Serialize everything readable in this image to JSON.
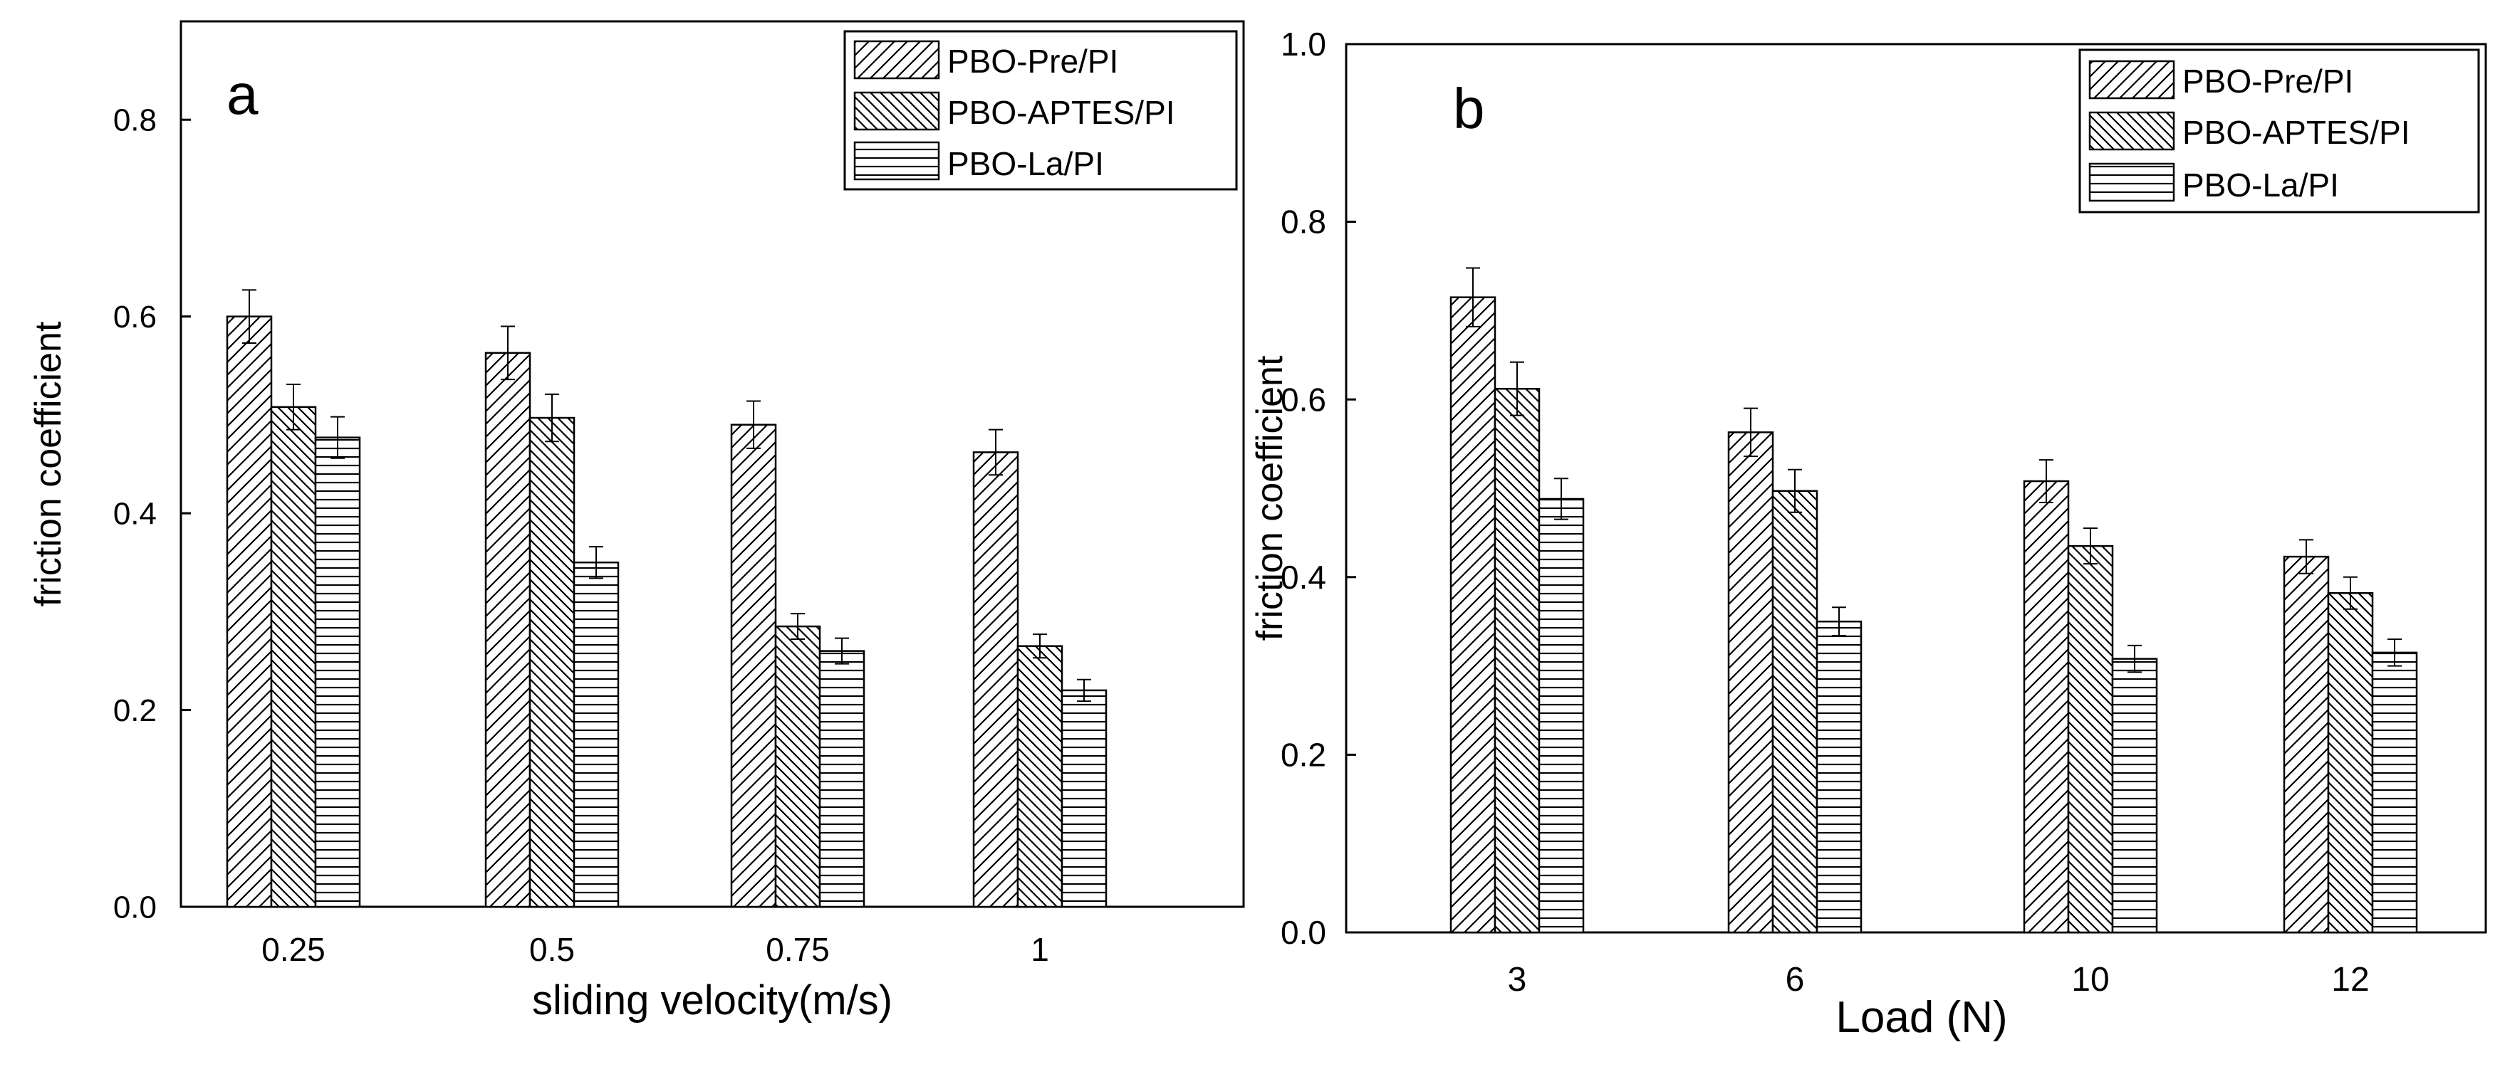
{
  "series_names": [
    "PBO-Pre/PI",
    "PBO-APTES/PI",
    "PBO-La/PI"
  ],
  "colors": {
    "stroke": "#000000",
    "background": "#ffffff"
  },
  "chart_data": [
    {
      "panel": "a",
      "type": "bar",
      "title": "",
      "xlabel": "sliding velocity(m/s)",
      "ylabel": "friction coefficient",
      "categories": [
        "0.25",
        "0.5",
        "0.75",
        "1"
      ],
      "ylim": [
        0,
        0.9
      ],
      "yticks": [
        "0.0",
        "0.2",
        "0.4",
        "0.6",
        "0.8"
      ],
      "ytick_values": [
        0,
        0.2,
        0.4,
        0.6,
        0.8
      ],
      "series": [
        {
          "name": "PBO-Pre/PI",
          "pattern": "diagonal-up",
          "values": [
            0.6,
            0.563,
            0.49,
            0.462
          ],
          "errors": [
            0.027,
            0.027,
            0.024,
            0.023
          ]
        },
        {
          "name": "PBO-APTES/PI",
          "pattern": "diagonal-down",
          "values": [
            0.508,
            0.497,
            0.285,
            0.265
          ],
          "errors": [
            0.023,
            0.024,
            0.013,
            0.012
          ]
        },
        {
          "name": "PBO-La/PI",
          "pattern": "horizontal",
          "values": [
            0.477,
            0.35,
            0.26,
            0.22
          ],
          "errors": [
            0.021,
            0.016,
            0.013,
            0.011
          ]
        }
      ],
      "legend_position": "top-right"
    },
    {
      "panel": "b",
      "type": "bar",
      "title": "",
      "xlabel": "Load (N)",
      "ylabel": "friction coefficient",
      "categories": [
        "3",
        "6",
        "10",
        "12"
      ],
      "ylim": [
        0,
        1.0
      ],
      "yticks": [
        "0.0",
        "0.2",
        "0.4",
        "0.6",
        "0.8",
        "1.0"
      ],
      "ytick_values": [
        0,
        0.2,
        0.4,
        0.6,
        0.8,
        1.0
      ],
      "series": [
        {
          "name": "PBO-Pre/PI",
          "pattern": "diagonal-up",
          "values": [
            0.715,
            0.563,
            0.508,
            0.423
          ],
          "errors": [
            0.033,
            0.027,
            0.024,
            0.019
          ]
        },
        {
          "name": "PBO-APTES/PI",
          "pattern": "diagonal-down",
          "values": [
            0.612,
            0.497,
            0.435,
            0.382
          ],
          "errors": [
            0.03,
            0.024,
            0.02,
            0.018
          ]
        },
        {
          "name": "PBO-La/PI",
          "pattern": "horizontal",
          "values": [
            0.488,
            0.35,
            0.308,
            0.315
          ],
          "errors": [
            0.023,
            0.016,
            0.015,
            0.015
          ]
        }
      ],
      "legend_position": "top-right"
    }
  ]
}
